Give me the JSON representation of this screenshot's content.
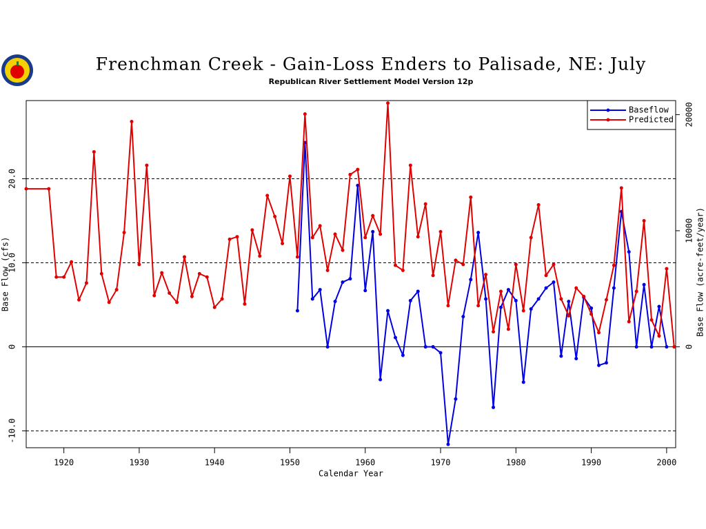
{
  "chart_data": {
    "type": "line",
    "title": "Frenchman Creek - Gain-Loss Enders to Palisade, NE: July",
    "subtitle": "Republican River Settlement Model Version 12p",
    "xlabel": "Calendar Year",
    "ylabel": "Base Flow (cfs)",
    "y2label": "Base Flow (acre-feet/year)",
    "xlim": [
      1915,
      2001.2
    ],
    "xticks": [
      1920,
      1930,
      1940,
      1950,
      1960,
      1970,
      1980,
      1990,
      2000
    ],
    "ylim": [
      -12,
      29.3
    ],
    "yticks": [
      {
        "value": -10,
        "label": "-10.0"
      },
      0,
      {
        "value": 10,
        "label": "10.0"
      },
      {
        "value": 20,
        "label": "20.0"
      }
    ],
    "y2lim": [
      -8690,
      21210
    ],
    "y2ticks": [
      0,
      10000,
      20000
    ],
    "grid": true,
    "legend": "upper right",
    "series": [
      {
        "name": "Baseflow",
        "color": "#0000e0",
        "x": [
          1951,
          1952,
          1953,
          1954,
          1955,
          1956,
          1957,
          1958,
          1959,
          1960,
          1961,
          1962,
          1963,
          1964,
          1965,
          1966,
          1967,
          1968,
          1969,
          1970,
          1971,
          1972,
          1973,
          1974,
          1975,
          1976,
          1977,
          1978,
          1979,
          1980,
          1981,
          1982,
          1983,
          1984,
          1985,
          1986,
          1987,
          1988,
          1989,
          1990,
          1991,
          1992,
          1993,
          1994,
          1995,
          1996,
          1997,
          1998,
          1999,
          2000
        ],
        "values": [
          4.3,
          24.3,
          5.7,
          6.8,
          0,
          5.4,
          7.7,
          8.1,
          19.2,
          6.7,
          13.7,
          -3.9,
          4.3,
          1.1,
          -1.0,
          5.5,
          6.6,
          0,
          0,
          -0.7,
          -11.6,
          -6.2,
          3.6,
          8.0,
          13.6,
          5.7,
          -7.2,
          4.7,
          6.8,
          5.5,
          -4.2,
          4.5,
          5.7,
          7.0,
          7.7,
          -1.1,
          5.4,
          -1.4,
          5.9,
          4.6,
          -2.2,
          -1.9,
          7.0,
          16.1,
          11.3,
          0,
          7.4,
          0,
          4.8,
          0
        ]
      },
      {
        "name": "Predicted",
        "color": "#e00000",
        "x": [
          1915,
          1918,
          1919,
          1920,
          1921,
          1922,
          1923,
          1924,
          1925,
          1926,
          1927,
          1928,
          1929,
          1930,
          1931,
          1932,
          1933,
          1934,
          1935,
          1936,
          1937,
          1938,
          1939,
          1940,
          1941,
          1942,
          1943,
          1944,
          1945,
          1946,
          1947,
          1948,
          1949,
          1950,
          1951,
          1952,
          1953,
          1954,
          1955,
          1956,
          1957,
          1958,
          1959,
          1960,
          1961,
          1962,
          1963,
          1964,
          1965,
          1966,
          1967,
          1968,
          1969,
          1970,
          1971,
          1972,
          1973,
          1974,
          1975,
          1976,
          1977,
          1978,
          1979,
          1980,
          1981,
          1982,
          1983,
          1984,
          1985,
          1986,
          1987,
          1988,
          1989,
          1990,
          1991,
          1992,
          1993,
          1994,
          1995,
          1996,
          1997,
          1998,
          1999,
          2000,
          2001
        ],
        "values": [
          18.8,
          18.8,
          8.3,
          8.3,
          10.1,
          5.6,
          7.6,
          23.2,
          8.7,
          5.3,
          6.8,
          13.6,
          26.8,
          9.8,
          21.6,
          6.1,
          8.8,
          6.4,
          5.3,
          10.7,
          6.0,
          8.7,
          8.3,
          4.7,
          5.7,
          12.8,
          13.1,
          5.1,
          13.9,
          10.8,
          18.0,
          15.5,
          12.3,
          20.3,
          10.7,
          27.7,
          13.0,
          14.4,
          9.1,
          13.4,
          11.5,
          20.5,
          21.1,
          13.0,
          15.6,
          13.4,
          29.0,
          9.7,
          9.1,
          21.6,
          13.1,
          17.0,
          8.5,
          13.7,
          4.9,
          10.3,
          9.8,
          17.8,
          4.9,
          8.6,
          1.8,
          6.6,
          2.1,
          9.8,
          4.3,
          13.0,
          16.9,
          8.5,
          9.8,
          5.7,
          3.7,
          7.0,
          6.0,
          3.9,
          1.7,
          5.6,
          9.7,
          18.9,
          3.0,
          6.6,
          15.0,
          3.2,
          1.3,
          9.3,
          0
        ]
      }
    ]
  }
}
